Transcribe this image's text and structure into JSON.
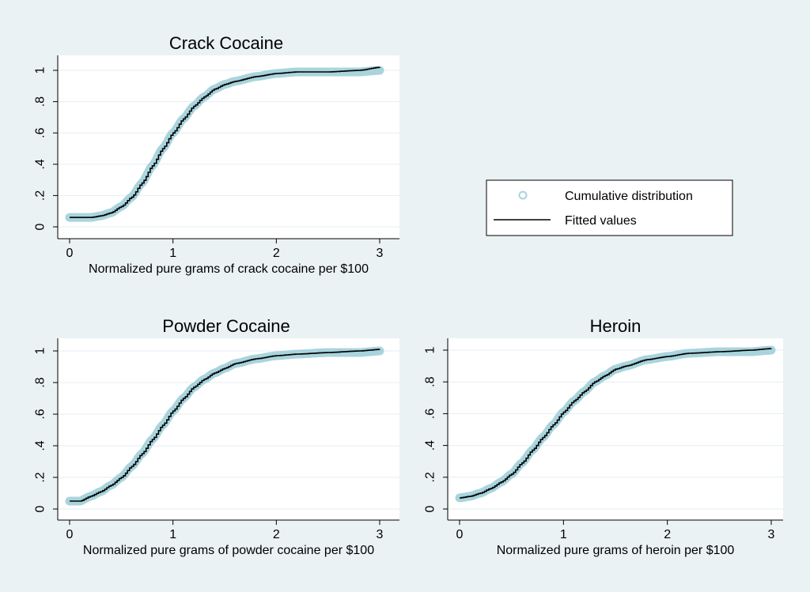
{
  "colors": {
    "background": "#eaf2f3",
    "panel": "#ffffff",
    "grid": "#e6eef0",
    "cdf_marker": "#a9d4dd",
    "fitted_line": "#000000"
  },
  "legend": {
    "items": [
      {
        "label": "Cumulative distribution",
        "symbol": "hollow-circle"
      },
      {
        "label": "Fitted values",
        "symbol": "line"
      }
    ]
  },
  "chart_data": [
    {
      "type": "scatter",
      "title": "Crack Cocaine",
      "xlabel": "Normalized pure grams of crack cocaine per $100",
      "ylabel": "",
      "xlim": [
        0,
        3
      ],
      "ylim": [
        0,
        1
      ],
      "xticks": [
        "0",
        "1",
        "2",
        "3"
      ],
      "yticks": [
        "0",
        ".2",
        ".4",
        ".6",
        ".8",
        "1"
      ],
      "grid": true,
      "series": [
        {
          "name": "Cumulative distribution",
          "x": [
            0,
            0.1,
            0.2,
            0.3,
            0.4,
            0.5,
            0.6,
            0.7,
            0.8,
            0.9,
            1.0,
            1.1,
            1.2,
            1.3,
            1.4,
            1.5,
            1.6,
            1.8,
            2.0,
            2.2,
            2.5,
            2.8,
            3.0
          ],
          "y": [
            0.06,
            0.06,
            0.06,
            0.07,
            0.09,
            0.13,
            0.19,
            0.28,
            0.39,
            0.5,
            0.6,
            0.69,
            0.77,
            0.83,
            0.88,
            0.91,
            0.93,
            0.96,
            0.98,
            0.99,
            0.99,
            0.99,
            1.0
          ]
        },
        {
          "name": "Fitted values",
          "x": [
            0,
            0.1,
            0.2,
            0.3,
            0.4,
            0.5,
            0.6,
            0.7,
            0.8,
            0.9,
            1.0,
            1.1,
            1.2,
            1.3,
            1.4,
            1.5,
            1.6,
            1.8,
            2.0,
            2.2,
            2.5,
            2.8,
            3.0
          ],
          "y": [
            0.06,
            0.06,
            0.06,
            0.07,
            0.09,
            0.13,
            0.19,
            0.28,
            0.39,
            0.5,
            0.6,
            0.69,
            0.77,
            0.83,
            0.88,
            0.91,
            0.93,
            0.96,
            0.98,
            0.99,
            0.99,
            1.0,
            1.02
          ]
        }
      ]
    },
    {
      "type": "scatter",
      "title": "Powder Cocaine",
      "xlabel": "Normalized pure grams of powder cocaine per $100",
      "ylabel": "",
      "xlim": [
        0,
        3
      ],
      "ylim": [
        0,
        1
      ],
      "xticks": [
        "0",
        "1",
        "2",
        "3"
      ],
      "yticks": [
        "0",
        ".2",
        ".4",
        ".6",
        ".8",
        "1"
      ],
      "grid": true,
      "series": [
        {
          "name": "Cumulative distribution",
          "x": [
            0,
            0.1,
            0.2,
            0.3,
            0.4,
            0.5,
            0.6,
            0.7,
            0.8,
            0.9,
            1.0,
            1.1,
            1.2,
            1.3,
            1.4,
            1.5,
            1.6,
            1.8,
            2.0,
            2.2,
            2.5,
            2.8,
            3.0
          ],
          "y": [
            0.05,
            0.05,
            0.08,
            0.11,
            0.15,
            0.2,
            0.27,
            0.35,
            0.44,
            0.53,
            0.62,
            0.7,
            0.77,
            0.82,
            0.86,
            0.89,
            0.92,
            0.95,
            0.97,
            0.98,
            0.99,
            0.99,
            1.0
          ]
        },
        {
          "name": "Fitted values",
          "x": [
            0,
            0.1,
            0.2,
            0.3,
            0.4,
            0.5,
            0.6,
            0.7,
            0.8,
            0.9,
            1.0,
            1.1,
            1.2,
            1.3,
            1.4,
            1.5,
            1.6,
            1.8,
            2.0,
            2.2,
            2.5,
            2.8,
            3.0
          ],
          "y": [
            0.05,
            0.05,
            0.08,
            0.11,
            0.15,
            0.2,
            0.27,
            0.35,
            0.44,
            0.53,
            0.62,
            0.7,
            0.77,
            0.82,
            0.86,
            0.89,
            0.92,
            0.95,
            0.97,
            0.98,
            0.99,
            1.0,
            1.01
          ]
        }
      ]
    },
    {
      "type": "scatter",
      "title": "Heroin",
      "xlabel": "Normalized pure grams of heroin per $100",
      "ylabel": "",
      "xlim": [
        0,
        3
      ],
      "ylim": [
        0,
        1
      ],
      "xticks": [
        "0",
        "1",
        "2",
        "3"
      ],
      "yticks": [
        "0",
        ".2",
        ".4",
        ".6",
        ".8",
        "1"
      ],
      "grid": true,
      "series": [
        {
          "name": "Cumulative distribution",
          "x": [
            0,
            0.1,
            0.2,
            0.3,
            0.4,
            0.5,
            0.6,
            0.7,
            0.8,
            0.9,
            1.0,
            1.1,
            1.2,
            1.3,
            1.4,
            1.5,
            1.6,
            1.8,
            2.0,
            2.2,
            2.5,
            2.8,
            3.0
          ],
          "y": [
            0.07,
            0.08,
            0.1,
            0.13,
            0.17,
            0.22,
            0.29,
            0.37,
            0.45,
            0.53,
            0.61,
            0.68,
            0.74,
            0.8,
            0.84,
            0.88,
            0.9,
            0.94,
            0.96,
            0.98,
            0.99,
            0.99,
            1.0
          ]
        },
        {
          "name": "Fitted values",
          "x": [
            0,
            0.1,
            0.2,
            0.3,
            0.4,
            0.5,
            0.6,
            0.7,
            0.8,
            0.9,
            1.0,
            1.1,
            1.2,
            1.3,
            1.4,
            1.5,
            1.6,
            1.8,
            2.0,
            2.2,
            2.5,
            2.8,
            3.0
          ],
          "y": [
            0.07,
            0.08,
            0.1,
            0.13,
            0.17,
            0.22,
            0.29,
            0.37,
            0.45,
            0.53,
            0.61,
            0.68,
            0.74,
            0.8,
            0.84,
            0.88,
            0.9,
            0.94,
            0.96,
            0.98,
            0.99,
            1.0,
            1.01
          ]
        }
      ]
    }
  ]
}
